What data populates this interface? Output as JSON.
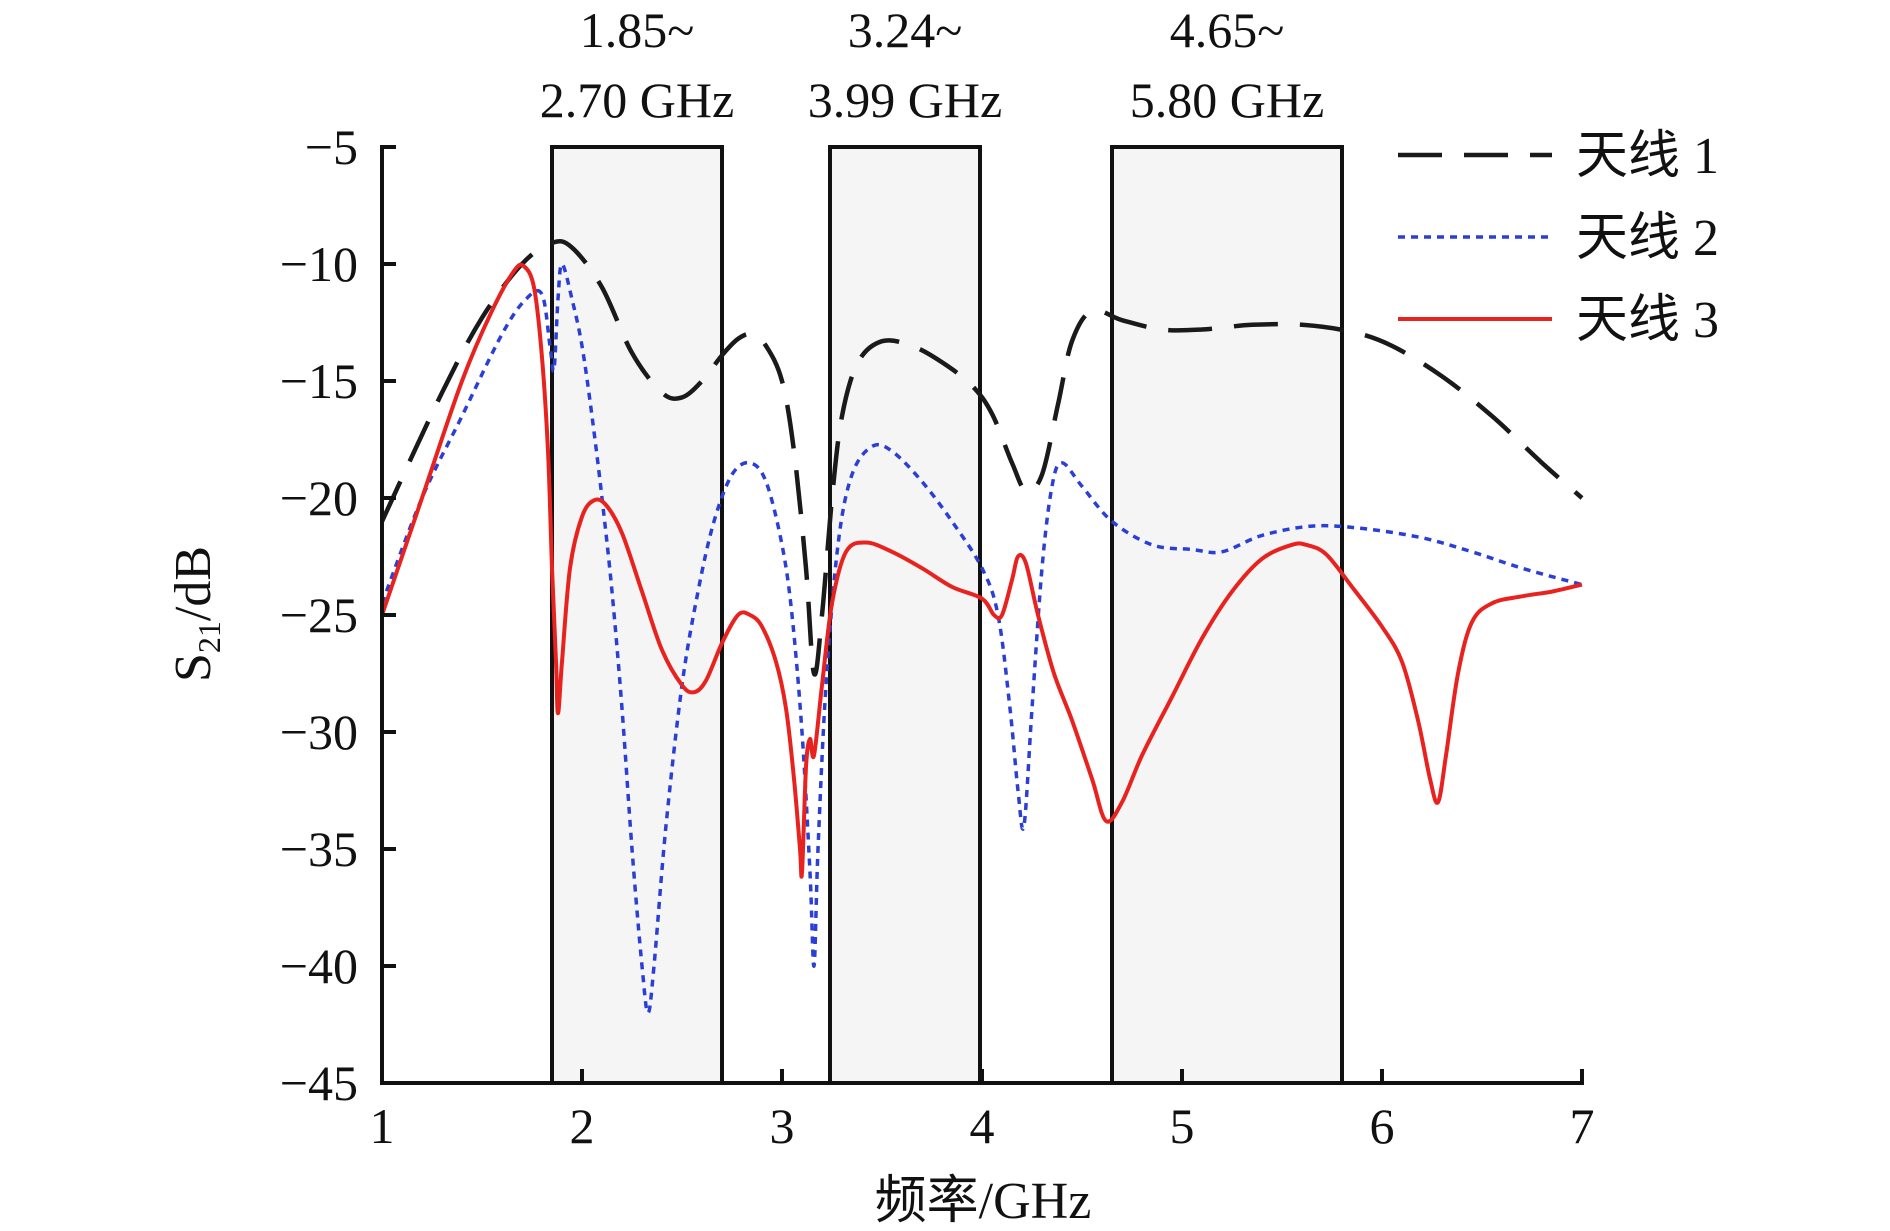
{
  "chart_data": {
    "type": "line",
    "xlabel": "频率/GHz",
    "ylabel": "S21/dB",
    "ylabel_main": "S",
    "ylabel_sub": "21",
    "ylabel_rest": "/dB",
    "xlim": [
      1,
      7
    ],
    "ylim": [
      -45,
      -5
    ],
    "xticks": [
      1,
      2,
      3,
      4,
      5,
      6,
      7
    ],
    "yticks": [
      -5,
      -10,
      -15,
      -20,
      -25,
      -30,
      -35,
      -40,
      -45
    ],
    "xtick_labels": [
      "1",
      "2",
      "3",
      "4",
      "5",
      "6",
      "7"
    ],
    "ytick_labels": [
      "−5",
      "−10",
      "−15",
      "−20",
      "−25",
      "−30",
      "−35",
      "−40",
      "−45"
    ],
    "grid": false,
    "legend_position": "top-right",
    "bands": [
      {
        "x0": 1.85,
        "x1": 2.7,
        "label_line1": "1.85~",
        "label_line2": "2.70 GHz"
      },
      {
        "x0": 3.24,
        "x1": 3.99,
        "label_line1": "3.24~",
        "label_line2": "3.99 GHz"
      },
      {
        "x0": 4.65,
        "x1": 5.8,
        "label_line1": "4.65~",
        "label_line2": "5.80 GHz"
      }
    ],
    "series": [
      {
        "name": "天线 1",
        "style": "dashed",
        "color": "#1a1a1a",
        "points": [
          [
            1.0,
            -21.0
          ],
          [
            1.3,
            -15.5
          ],
          [
            1.5,
            -12.3
          ],
          [
            1.7,
            -10.0
          ],
          [
            1.85,
            -9.1
          ],
          [
            1.95,
            -9.3
          ],
          [
            2.1,
            -11.0
          ],
          [
            2.25,
            -13.8
          ],
          [
            2.4,
            -15.5
          ],
          [
            2.5,
            -15.7
          ],
          [
            2.6,
            -15.0
          ],
          [
            2.7,
            -13.9
          ],
          [
            2.78,
            -13.2
          ],
          [
            2.85,
            -13.0
          ],
          [
            2.92,
            -13.5
          ],
          [
            3.0,
            -15.0
          ],
          [
            3.06,
            -18.0
          ],
          [
            3.12,
            -23.0
          ],
          [
            3.16,
            -27.5
          ],
          [
            3.2,
            -25.0
          ],
          [
            3.25,
            -20.0
          ],
          [
            3.3,
            -16.5
          ],
          [
            3.38,
            -14.2
          ],
          [
            3.5,
            -13.3
          ],
          [
            3.65,
            -13.5
          ],
          [
            3.8,
            -14.2
          ],
          [
            3.95,
            -15.2
          ],
          [
            4.05,
            -16.4
          ],
          [
            4.15,
            -18.5
          ],
          [
            4.22,
            -19.7
          ],
          [
            4.3,
            -19.0
          ],
          [
            4.38,
            -16.0
          ],
          [
            4.45,
            -13.3
          ],
          [
            4.55,
            -12.0
          ],
          [
            4.7,
            -12.4
          ],
          [
            4.9,
            -12.8
          ],
          [
            5.1,
            -12.8
          ],
          [
            5.35,
            -12.6
          ],
          [
            5.6,
            -12.6
          ],
          [
            5.85,
            -12.9
          ],
          [
            6.05,
            -13.5
          ],
          [
            6.3,
            -14.8
          ],
          [
            6.55,
            -16.5
          ],
          [
            6.8,
            -18.5
          ],
          [
            7.0,
            -20.0
          ]
        ]
      },
      {
        "name": "天线 2",
        "style": "dotted",
        "color": "#2b3fd6",
        "points": [
          [
            1.0,
            -24.5
          ],
          [
            1.2,
            -20.0
          ],
          [
            1.4,
            -16.5
          ],
          [
            1.6,
            -13.0
          ],
          [
            1.72,
            -11.5
          ],
          [
            1.8,
            -11.3
          ],
          [
            1.84,
            -13.5
          ],
          [
            1.86,
            -14.5
          ],
          [
            1.88,
            -11.5
          ],
          [
            1.9,
            -10.0
          ],
          [
            1.95,
            -11.5
          ],
          [
            2.0,
            -13.5
          ],
          [
            2.05,
            -16.5
          ],
          [
            2.1,
            -20.0
          ],
          [
            2.15,
            -24.0
          ],
          [
            2.2,
            -29.0
          ],
          [
            2.25,
            -35.0
          ],
          [
            2.3,
            -40.0
          ],
          [
            2.33,
            -42.0
          ],
          [
            2.36,
            -40.0
          ],
          [
            2.42,
            -34.0
          ],
          [
            2.5,
            -28.0
          ],
          [
            2.58,
            -24.0
          ],
          [
            2.66,
            -21.0
          ],
          [
            2.75,
            -19.0
          ],
          [
            2.84,
            -18.5
          ],
          [
            2.92,
            -19.3
          ],
          [
            3.0,
            -22.0
          ],
          [
            3.05,
            -25.0
          ],
          [
            3.1,
            -30.0
          ],
          [
            3.14,
            -36.0
          ],
          [
            3.16,
            -40.0
          ],
          [
            3.18,
            -35.0
          ],
          [
            3.22,
            -28.0
          ],
          [
            3.28,
            -22.0
          ],
          [
            3.35,
            -19.0
          ],
          [
            3.45,
            -17.8
          ],
          [
            3.55,
            -18.0
          ],
          [
            3.7,
            -19.3
          ],
          [
            3.85,
            -21.0
          ],
          [
            4.0,
            -23.0
          ],
          [
            4.08,
            -25.0
          ],
          [
            4.14,
            -29.0
          ],
          [
            4.18,
            -32.5
          ],
          [
            4.21,
            -34.0
          ],
          [
            4.25,
            -29.0
          ],
          [
            4.3,
            -23.0
          ],
          [
            4.35,
            -19.5
          ],
          [
            4.4,
            -18.5
          ],
          [
            4.5,
            -19.5
          ],
          [
            4.65,
            -21.0
          ],
          [
            4.85,
            -22.0
          ],
          [
            5.05,
            -22.2
          ],
          [
            5.2,
            -22.3
          ],
          [
            5.4,
            -21.6
          ],
          [
            5.65,
            -21.2
          ],
          [
            5.9,
            -21.3
          ],
          [
            6.2,
            -21.7
          ],
          [
            6.45,
            -22.3
          ],
          [
            6.7,
            -23.0
          ],
          [
            7.0,
            -23.7
          ]
        ]
      },
      {
        "name": "天线 3",
        "style": "solid",
        "color": "#e8231f",
        "points": [
          [
            1.0,
            -25.0
          ],
          [
            1.2,
            -20.0
          ],
          [
            1.4,
            -15.0
          ],
          [
            1.55,
            -12.0
          ],
          [
            1.66,
            -10.3
          ],
          [
            1.71,
            -10.1
          ],
          [
            1.76,
            -11.0
          ],
          [
            1.8,
            -14.0
          ],
          [
            1.83,
            -18.0
          ],
          [
            1.85,
            -23.0
          ],
          [
            1.87,
            -27.0
          ],
          [
            1.88,
            -29.2
          ],
          [
            1.9,
            -27.0
          ],
          [
            1.94,
            -23.0
          ],
          [
            2.0,
            -20.8
          ],
          [
            2.06,
            -20.1
          ],
          [
            2.12,
            -20.3
          ],
          [
            2.2,
            -21.5
          ],
          [
            2.3,
            -24.0
          ],
          [
            2.4,
            -26.5
          ],
          [
            2.5,
            -28.0
          ],
          [
            2.56,
            -28.3
          ],
          [
            2.62,
            -27.8
          ],
          [
            2.7,
            -26.2
          ],
          [
            2.78,
            -25.0
          ],
          [
            2.84,
            -25.0
          ],
          [
            2.9,
            -25.5
          ],
          [
            2.97,
            -27.0
          ],
          [
            3.02,
            -29.0
          ],
          [
            3.06,
            -32.0
          ],
          [
            3.09,
            -35.0
          ],
          [
            3.1,
            -36.0
          ],
          [
            3.12,
            -31.5
          ],
          [
            3.14,
            -30.3
          ],
          [
            3.16,
            -31.0
          ],
          [
            3.2,
            -28.0
          ],
          [
            3.25,
            -24.5
          ],
          [
            3.32,
            -22.3
          ],
          [
            3.42,
            -21.9
          ],
          [
            3.55,
            -22.3
          ],
          [
            3.7,
            -23.0
          ],
          [
            3.85,
            -23.8
          ],
          [
            4.0,
            -24.3
          ],
          [
            4.06,
            -25.0
          ],
          [
            4.1,
            -25.0
          ],
          [
            4.15,
            -23.5
          ],
          [
            4.18,
            -22.5
          ],
          [
            4.22,
            -22.8
          ],
          [
            4.28,
            -25.0
          ],
          [
            4.36,
            -27.5
          ],
          [
            4.45,
            -29.5
          ],
          [
            4.55,
            -32.0
          ],
          [
            4.62,
            -33.8
          ],
          [
            4.7,
            -33.0
          ],
          [
            4.8,
            -31.0
          ],
          [
            4.95,
            -28.5
          ],
          [
            5.1,
            -26.0
          ],
          [
            5.25,
            -24.0
          ],
          [
            5.4,
            -22.6
          ],
          [
            5.55,
            -22.0
          ],
          [
            5.62,
            -22.0
          ],
          [
            5.72,
            -22.4
          ],
          [
            5.85,
            -23.8
          ],
          [
            6.0,
            -25.5
          ],
          [
            6.1,
            -27.0
          ],
          [
            6.18,
            -29.5
          ],
          [
            6.24,
            -32.0
          ],
          [
            6.28,
            -33.0
          ],
          [
            6.32,
            -31.0
          ],
          [
            6.38,
            -27.5
          ],
          [
            6.45,
            -25.3
          ],
          [
            6.55,
            -24.5
          ],
          [
            6.7,
            -24.2
          ],
          [
            6.85,
            -24.0
          ],
          [
            7.0,
            -23.7
          ]
        ]
      }
    ]
  }
}
